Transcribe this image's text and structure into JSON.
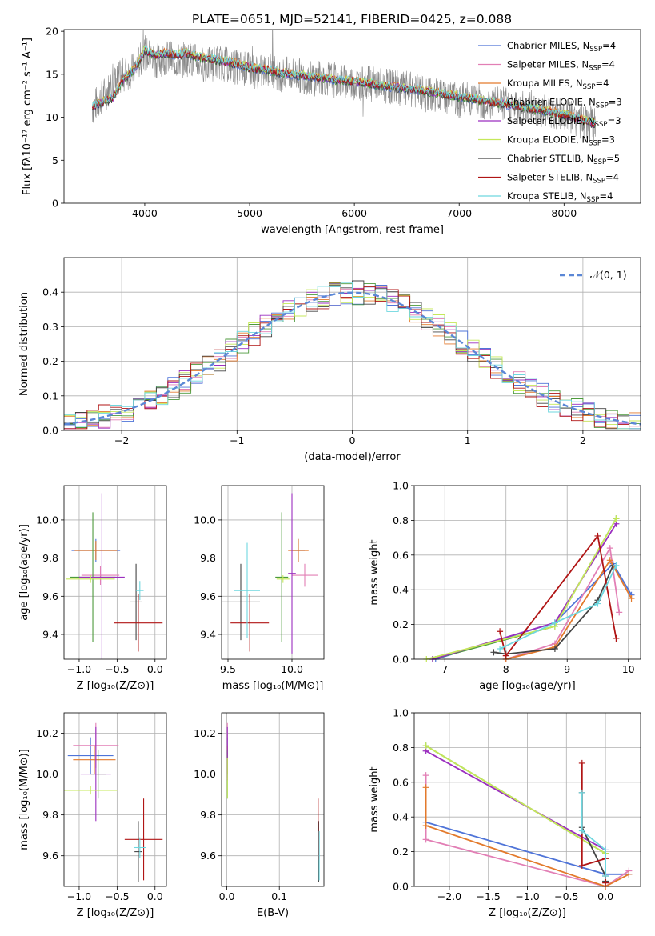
{
  "figure_title": "PLATE=0651, MJD=52141, FIBERID=0425, z=0.088",
  "series_styles": [
    {
      "name": "Chabrier MILES",
      "nssp": "4",
      "color": "#4f74d8"
    },
    {
      "name": "Salpeter MILES",
      "nssp": "4",
      "color": "#e27fb5"
    },
    {
      "name": "Kroupa MILES",
      "nssp": "4",
      "color": "#e37a2c"
    },
    {
      "name": "Chabrier ELODIE",
      "nssp": "3",
      "color": "#4c9a3c"
    },
    {
      "name": "Salpeter ELODIE",
      "nssp": "3",
      "color": "#9b2fbf"
    },
    {
      "name": "Kroupa ELODIE",
      "nssp": "3",
      "color": "#c5e85a"
    },
    {
      "name": "Chabrier STELIB",
      "nssp": "5",
      "color": "#444444"
    },
    {
      "name": "Salpeter STELIB",
      "nssp": "4",
      "color": "#b01515"
    },
    {
      "name": "Kroupa STELIB",
      "nssp": "4",
      "color": "#6ed7df"
    }
  ],
  "chart_data": [
    {
      "id": "spectrum",
      "type": "line",
      "xlabel": "wavelength [Angstrom, rest frame]",
      "ylabel": "Flux [fλ10⁻¹⁷ erg cm⁻² s⁻¹ A⁻¹]",
      "xlim": [
        3230,
        8730
      ],
      "ylim": [
        0,
        20.2
      ],
      "xticks": [
        4000,
        5000,
        6000,
        7000,
        8000
      ],
      "yticks": [
        0,
        5,
        10,
        15,
        20
      ],
      "grid": false,
      "legend": "right",
      "data_series": {
        "name": "",
        "color": "#888888",
        "x": [
          3500,
          3600,
          3700,
          3800,
          3900,
          4000,
          4100,
          4200,
          4300,
          4400,
          4500,
          4600,
          4700,
          4800,
          4900,
          5000,
          5100,
          5200,
          5300,
          5400,
          5500,
          5600,
          5700,
          5800,
          5900,
          6000,
          6100,
          6200,
          6300,
          6400,
          6500,
          6600,
          6700,
          6800,
          6900,
          7000,
          7100,
          7200,
          7300,
          7400,
          7500,
          7600,
          7700,
          7800,
          7900,
          8000,
          8100,
          8200,
          8300
        ],
        "y": [
          11,
          12.5,
          13.8,
          15,
          15.5,
          17.5,
          16.5,
          17,
          16.5,
          16.8,
          16.5,
          16,
          16.5,
          16,
          15.8,
          15.5,
          15.2,
          15.5,
          15,
          15,
          14.8,
          14.5,
          14.6,
          14.4,
          14.2,
          14,
          14,
          13.8,
          13.6,
          13.5,
          13.3,
          13,
          12.6,
          12.5,
          12.3,
          12,
          12.2,
          11.8,
          11.5,
          11.6,
          11.3,
          11,
          11.2,
          10.8,
          10.5,
          10.2,
          9.8,
          9.4,
          9
        ]
      },
      "model_series": {
        "x": [
          3500,
          3600,
          3700,
          3800,
          3900,
          4000,
          4100,
          4200,
          4300,
          4400,
          4500,
          4600,
          4700,
          4800,
          4900,
          5000,
          5200,
          5400,
          5600,
          5800,
          6000,
          6200,
          6400,
          6600,
          6800,
          7000,
          7200,
          7400,
          7600,
          7800,
          8000,
          8200,
          8300
        ],
        "y": [
          11.2,
          11.8,
          12.3,
          14.5,
          15.5,
          17.8,
          17.2,
          17.5,
          17.2,
          17.5,
          17,
          16.8,
          16.6,
          16.4,
          16.2,
          15.8,
          15.4,
          15,
          14.7,
          14.4,
          14.2,
          13.8,
          13.5,
          13.2,
          12.8,
          12.4,
          12,
          11.6,
          11.2,
          10.8,
          10.3,
          9.6,
          9.2
        ]
      }
    },
    {
      "id": "residuals",
      "type": "line",
      "xlabel": "(data-model)/error",
      "ylabel": "Normed distribution",
      "xlim": [
        -2.5,
        2.5
      ],
      "ylim": [
        0,
        0.5
      ],
      "xticks": [
        -2,
        -1,
        0,
        1,
        2
      ],
      "yticks": [
        0.0,
        0.1,
        0.2,
        0.3,
        0.4
      ],
      "grid": true,
      "legend": "top-right",
      "legend_entry": "𝒩(0, 1)",
      "gaussian_color": "#5b87d6",
      "bin_width": 0.1
    },
    {
      "id": "age-vs-Z",
      "type": "scatter",
      "xlabel": "Z [log₁₀(Z/Z⊙)]",
      "ylabel": "age  [log₁₀(age/yr)]",
      "xlim": [
        -1.2,
        0.15
      ],
      "ylim": [
        9.27,
        10.18
      ],
      "xticks": [
        -1.0,
        -0.5,
        0.0
      ],
      "yticks": [
        9.4,
        9.6,
        9.8,
        10.0
      ],
      "grid": true,
      "points": [
        {
          "x": -0.78,
          "y": 9.84,
          "xerr": 0.32,
          "yerr": 0.06,
          "color": "#4f74d8"
        },
        {
          "x": -0.72,
          "y": 9.71,
          "xerr": 0.25,
          "yerr": 0.05,
          "color": "#e27fb5"
        },
        {
          "x": -0.78,
          "y": 9.84,
          "xerr": 0.28,
          "yerr": 0.05,
          "color": "#e37a2c"
        },
        {
          "x": -0.82,
          "y": 9.7,
          "xerr": 0.3,
          "yerr": 0.34,
          "color": "#4c9a3c"
        },
        {
          "x": -0.7,
          "y": 9.7,
          "xerr": 0.3,
          "yerr": 0.44,
          "color": "#9b2fbf"
        },
        {
          "x": -0.85,
          "y": 9.69,
          "xerr": 0.32,
          "yerr": 0.02,
          "color": "#c5e85a"
        },
        {
          "x": -0.25,
          "y": 9.57,
          "xerr": 0.08,
          "yerr": 0.2,
          "color": "#444444"
        },
        {
          "x": -0.22,
          "y": 9.46,
          "xerr": 0.32,
          "yerr": 0.15,
          "color": "#b01515"
        },
        {
          "x": -0.2,
          "y": 9.63,
          "xerr": 0.05,
          "yerr": 0.05,
          "color": "#6ed7df"
        }
      ]
    },
    {
      "id": "age-vs-mass",
      "type": "scatter",
      "xlabel": "mass [log₁₀(M/M⊙)]",
      "ylabel": "",
      "xlim": [
        9.45,
        10.25
      ],
      "ylim": [
        9.27,
        10.18
      ],
      "xticks": [
        9.5,
        10.0
      ],
      "yticks": [
        9.4,
        9.6,
        9.8,
        10.0
      ],
      "grid": true,
      "points": [
        {
          "x": 10.05,
          "y": 9.84,
          "xerr": 0.05,
          "yerr": 0.06,
          "color": "#4f74d8"
        },
        {
          "x": 10.1,
          "y": 9.71,
          "xerr": 0.1,
          "yerr": 0.06,
          "color": "#e27fb5"
        },
        {
          "x": 10.05,
          "y": 9.84,
          "xerr": 0.08,
          "yerr": 0.06,
          "color": "#e37a2c"
        },
        {
          "x": 9.92,
          "y": 9.7,
          "xerr": 0.05,
          "yerr": 0.34,
          "color": "#4c9a3c"
        },
        {
          "x": 10.0,
          "y": 9.72,
          "xerr": 0.03,
          "yerr": 0.42,
          "color": "#9b2fbf"
        },
        {
          "x": 9.93,
          "y": 9.69,
          "xerr": 0.05,
          "yerr": 0.02,
          "color": "#c5e85a"
        },
        {
          "x": 9.6,
          "y": 9.57,
          "xerr": 0.15,
          "yerr": 0.2,
          "color": "#444444"
        },
        {
          "x": 9.67,
          "y": 9.46,
          "xerr": 0.15,
          "yerr": 0.15,
          "color": "#b01515"
        },
        {
          "x": 9.65,
          "y": 9.63,
          "xerr": 0.1,
          "yerr": 0.25,
          "color": "#6ed7df"
        }
      ]
    },
    {
      "id": "weight-vs-age",
      "type": "line",
      "xlabel": "age  [log₁₀(age/yr)]",
      "ylabel": "mass weight",
      "xlim": [
        6.5,
        10.2
      ],
      "ylim": [
        0,
        1.0
      ],
      "xticks": [
        7,
        8,
        9,
        10
      ],
      "yticks": [
        0.0,
        0.2,
        0.4,
        0.6,
        0.8,
        1.0
      ],
      "grid": true,
      "series": [
        {
          "color": "#4f74d8",
          "x": [
            6.85,
            8.8,
            9.75,
            10.05
          ],
          "y": [
            0.0,
            0.21,
            0.55,
            0.37
          ]
        },
        {
          "color": "#e27fb5",
          "x": [
            8.0,
            8.8,
            9.7,
            9.85
          ],
          "y": [
            0.0,
            0.09,
            0.64,
            0.27
          ]
        },
        {
          "color": "#e37a2c",
          "x": [
            8.0,
            8.8,
            9.7,
            10.05
          ],
          "y": [
            0.0,
            0.07,
            0.57,
            0.35
          ]
        },
        {
          "color": "#4c9a3c",
          "x": [
            6.8,
            8.8,
            9.8
          ],
          "y": [
            0.0,
            0.19,
            0.81
          ]
        },
        {
          "color": "#9b2fbf",
          "x": [
            6.8,
            8.8,
            9.8
          ],
          "y": [
            0.0,
            0.21,
            0.78
          ]
        },
        {
          "color": "#c5e85a",
          "x": [
            6.7,
            8.8,
            9.8
          ],
          "y": [
            0.0,
            0.19,
            0.81
          ]
        },
        {
          "color": "#444444",
          "x": [
            7.8,
            8.0,
            8.8,
            9.5,
            9.75
          ],
          "y": [
            0.04,
            0.03,
            0.06,
            0.34,
            0.54
          ]
        },
        {
          "color": "#b01515",
          "x": [
            7.9,
            8.0,
            9.5,
            9.8
          ],
          "y": [
            0.16,
            0.02,
            0.71,
            0.12
          ]
        },
        {
          "color": "#6ed7df",
          "x": [
            7.9,
            8.8,
            9.5,
            9.8
          ],
          "y": [
            0.06,
            0.21,
            0.32,
            0.54
          ]
        }
      ]
    },
    {
      "id": "mass-vs-Z",
      "type": "scatter",
      "xlabel": "Z [log₁₀(Z/Z⊙)]",
      "ylabel": "mass [log₁₀(M/M⊙)]",
      "xlim": [
        -1.2,
        0.15
      ],
      "ylim": [
        9.45,
        10.3
      ],
      "xticks": [
        -1.0,
        -0.5,
        0.0
      ],
      "yticks": [
        9.6,
        9.8,
        10.0,
        10.2
      ],
      "grid": true,
      "points": [
        {
          "x": -0.85,
          "y": 10.09,
          "xerr": 0.3,
          "yerr": 0.09,
          "color": "#4f74d8"
        },
        {
          "x": -0.78,
          "y": 10.14,
          "xerr": 0.3,
          "yerr": 0.11,
          "color": "#e27fb5"
        },
        {
          "x": -0.8,
          "y": 10.07,
          "xerr": 0.28,
          "yerr": 0.07,
          "color": "#e37a2c"
        },
        {
          "x": -0.75,
          "y": 10.0,
          "xerr": 0.1,
          "yerr": 0.12,
          "color": "#4c9a3c"
        },
        {
          "x": -0.78,
          "y": 10.0,
          "xerr": 0.2,
          "yerr": 0.23,
          "color": "#9b2fbf"
        },
        {
          "x": -0.85,
          "y": 9.92,
          "xerr": 0.35,
          "yerr": 0.02,
          "color": "#c5e85a"
        },
        {
          "x": -0.22,
          "y": 9.62,
          "xerr": 0.05,
          "yerr": 0.15,
          "color": "#444444"
        },
        {
          "x": -0.15,
          "y": 9.68,
          "xerr": 0.25,
          "yerr": 0.2,
          "color": "#b01515"
        },
        {
          "x": -0.2,
          "y": 9.64,
          "xerr": 0.08,
          "yerr": 0.05,
          "color": "#6ed7df"
        }
      ]
    },
    {
      "id": "mass-vs-EBV",
      "type": "scatter",
      "xlabel": "E(B-V)",
      "ylabel": "",
      "xlim": [
        -0.01,
        0.185
      ],
      "ylim": [
        9.45,
        10.3
      ],
      "xticks": [
        0.0,
        0.1
      ],
      "yticks": [
        9.6,
        9.8,
        10.0,
        10.2
      ],
      "grid": true,
      "points": [
        {
          "x": 0.001,
          "y": 10.09,
          "xerr": 0.001,
          "yerr": 0.09,
          "color": "#4f74d8"
        },
        {
          "x": 0.001,
          "y": 10.14,
          "xerr": 0.001,
          "yerr": 0.11,
          "color": "#e27fb5"
        },
        {
          "x": 0.001,
          "y": 10.07,
          "xerr": 0.001,
          "yerr": 0.07,
          "color": "#e37a2c"
        },
        {
          "x": 0.001,
          "y": 10.0,
          "xerr": 0.001,
          "yerr": 0.12,
          "color": "#4c9a3c"
        },
        {
          "x": 0.001,
          "y": 10.1,
          "xerr": 0.001,
          "yerr": 0.13,
          "color": "#9b2fbf"
        },
        {
          "x": 0.001,
          "y": 9.98,
          "xerr": 0.001,
          "yerr": 0.1,
          "color": "#c5e85a"
        },
        {
          "x": 0.175,
          "y": 9.62,
          "xerr": 0.001,
          "yerr": 0.15,
          "color": "#444444"
        },
        {
          "x": 0.174,
          "y": 9.73,
          "xerr": 0.001,
          "yerr": 0.15,
          "color": "#b01515"
        },
        {
          "x": 0.176,
          "y": 9.6,
          "xerr": 0.001,
          "yerr": 0.12,
          "color": "#6ed7df"
        }
      ]
    },
    {
      "id": "weight-vs-Z",
      "type": "line",
      "xlabel": "Z [log₁₀(Z/Z⊙)]",
      "ylabel": "mass weight",
      "xlim": [
        -2.45,
        0.45
      ],
      "ylim": [
        0,
        1.0
      ],
      "xticks": [
        -2.0,
        -1.5,
        -1.0,
        -0.5,
        0.0
      ],
      "yticks": [
        0.0,
        0.2,
        0.4,
        0.6,
        0.8,
        1.0
      ],
      "grid": true,
      "series": [
        {
          "color": "#4f74d8",
          "x": [
            -2.3,
            0.0,
            0.3
          ],
          "y": [
            0.37,
            0.07,
            0.07
          ]
        },
        {
          "color": "#e27fb5",
          "x": [
            -2.3,
            -2.3,
            0.0,
            0.3
          ],
          "y": [
            0.64,
            0.27,
            0.0,
            0.09
          ]
        },
        {
          "color": "#e37a2c",
          "x": [
            -2.3,
            -2.3,
            0.0,
            0.3
          ],
          "y": [
            0.57,
            0.35,
            0.0,
            0.07
          ]
        },
        {
          "color": "#4c9a3c",
          "x": [
            -2.3,
            0.0
          ],
          "y": [
            0.81,
            0.19
          ]
        },
        {
          "color": "#9b2fbf",
          "x": [
            -2.3,
            0.0
          ],
          "y": [
            0.78,
            0.21
          ]
        },
        {
          "color": "#c5e85a",
          "x": [
            -2.3,
            0.0
          ],
          "y": [
            0.81,
            0.19
          ]
        },
        {
          "color": "#444444",
          "x": [
            -0.3,
            -0.3,
            0.0,
            0.0
          ],
          "y": [
            0.54,
            0.34,
            0.06,
            0.03
          ]
        },
        {
          "color": "#b01515",
          "x": [
            -0.3,
            -0.3,
            0.0,
            0.0
          ],
          "y": [
            0.71,
            0.12,
            0.16,
            0.02
          ]
        },
        {
          "color": "#6ed7df",
          "x": [
            -0.3,
            -0.3,
            0.0,
            0.0
          ],
          "y": [
            0.54,
            0.32,
            0.21,
            0.06
          ]
        }
      ]
    }
  ]
}
